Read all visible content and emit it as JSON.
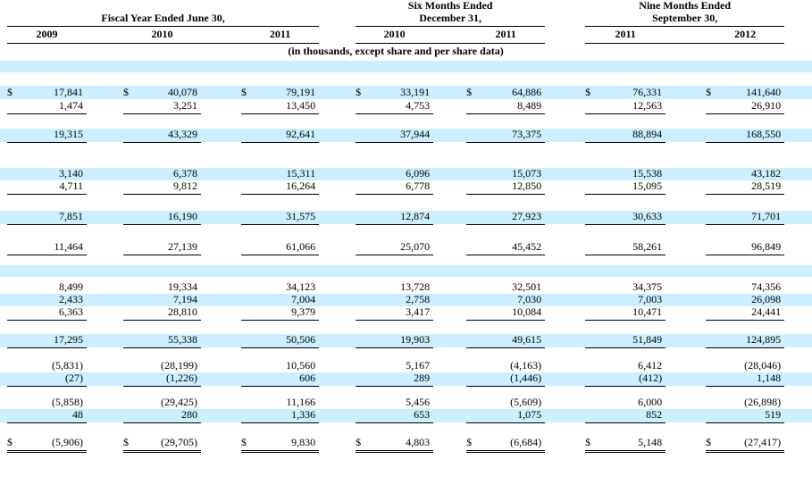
{
  "accent_color": "#cceeff",
  "currency_symbol": "$",
  "header": {
    "groups": [
      {
        "title": "Fiscal Year Ended June 30,",
        "years": [
          "2009",
          "2010",
          "2011"
        ]
      },
      {
        "title": "Six Months Ended\nDecember 31,",
        "years": [
          "2010",
          "2011"
        ]
      },
      {
        "title": "Nine Months Ended\nSeptember 30,",
        "years": [
          "2011",
          "2012"
        ]
      }
    ],
    "subtitle": "(in thousands, except share and per share data)"
  },
  "table": {
    "rows": [
      {
        "type": "blank",
        "bg": "blue",
        "h": 13
      },
      {
        "type": "blank",
        "bg": "white",
        "h": 15
      },
      {
        "type": "data",
        "bg": "blue",
        "h": 15,
        "dollar": true,
        "values": [
          "17,841",
          "40,078",
          "79,191",
          "33,191",
          "64,886",
          "76,331",
          "141,640"
        ]
      },
      {
        "type": "data",
        "bg": "white",
        "h": 16,
        "underline": true,
        "values": [
          "1,474",
          "3,251",
          "13,450",
          "4,753",
          "8,489",
          "12,563",
          "26,910"
        ]
      },
      {
        "type": "spacer",
        "bg": "white",
        "h": 17
      },
      {
        "type": "data",
        "bg": "blue",
        "h": 15,
        "underline": true,
        "values": [
          "19,315",
          "43,329",
          "92,641",
          "37,944",
          "73,375",
          "88,894",
          "168,550"
        ]
      },
      {
        "type": "spacer",
        "bg": "white",
        "h": 29
      },
      {
        "type": "data",
        "bg": "blue",
        "h": 14,
        "values": [
          "3,140",
          "6,378",
          "15,311",
          "6,096",
          "15,073",
          "15,538",
          "43,182"
        ]
      },
      {
        "type": "data",
        "bg": "white",
        "h": 15,
        "underline": true,
        "values": [
          "4,711",
          "9,812",
          "16,264",
          "6,778",
          "12,850",
          "15,095",
          "28,519"
        ]
      },
      {
        "type": "spacer",
        "bg": "white",
        "h": 19
      },
      {
        "type": "data",
        "bg": "blue",
        "h": 15,
        "underline": true,
        "values": [
          "7,851",
          "16,190",
          "31,575",
          "12,874",
          "27,923",
          "30,633",
          "71,701"
        ]
      },
      {
        "type": "spacer",
        "bg": "white",
        "h": 18
      },
      {
        "type": "data",
        "bg": "white",
        "h": 16,
        "underline": true,
        "values": [
          "11,464",
          "27,139",
          "61,066",
          "25,070",
          "45,452",
          "58,261",
          "96,849"
        ]
      },
      {
        "type": "spacer",
        "bg": "white",
        "h": 12
      },
      {
        "type": "blank",
        "bg": "blue",
        "h": 13
      },
      {
        "type": "spacer",
        "bg": "white",
        "h": 5
      },
      {
        "type": "data",
        "bg": "white",
        "h": 14,
        "values": [
          "8,499",
          "19,334",
          "34,123",
          "13,728",
          "32,501",
          "34,375",
          "74,356"
        ]
      },
      {
        "type": "data",
        "bg": "blue",
        "h": 14,
        "values": [
          "2,433",
          "7,194",
          "7,004",
          "2,758",
          "7,030",
          "7,003",
          "26,098"
        ]
      },
      {
        "type": "data",
        "bg": "white",
        "h": 15,
        "underline": true,
        "values": [
          "6,363",
          "28,810",
          "9,379",
          "3,417",
          "10,084",
          "10,471",
          "24,441"
        ]
      },
      {
        "type": "spacer",
        "bg": "white",
        "h": 16
      },
      {
        "type": "data",
        "bg": "blue",
        "h": 15,
        "underline": true,
        "values": [
          "17,295",
          "55,338",
          "50,506",
          "19,903",
          "49,615",
          "51,849",
          "124,895"
        ]
      },
      {
        "type": "spacer",
        "bg": "white",
        "h": 13
      },
      {
        "type": "data",
        "bg": "white",
        "h": 15,
        "values": [
          "(5,831)",
          "(28,199)",
          "10,560",
          "5,167",
          "(4,163)",
          "6,412",
          "(28,046)"
        ]
      },
      {
        "type": "data",
        "bg": "blue",
        "h": 15,
        "underline": true,
        "values": [
          "(27)",
          "(1,226)",
          "606",
          "289",
          "(1,446)",
          "(412)",
          "1,148"
        ]
      },
      {
        "type": "spacer",
        "bg": "white",
        "h": 11
      },
      {
        "type": "data",
        "bg": "white",
        "h": 15,
        "values": [
          "(5,858)",
          "(29,425)",
          "11,166",
          "5,456",
          "(5,609)",
          "6,000",
          "(26,898)"
        ]
      },
      {
        "type": "data",
        "bg": "blue",
        "h": 15,
        "underline": true,
        "values": [
          "48",
          "280",
          "1,336",
          "653",
          "1,075",
          "852",
          "519"
        ]
      },
      {
        "type": "spacer",
        "bg": "white",
        "h": 15
      },
      {
        "type": "data",
        "bg": "white",
        "h": 17,
        "dollar": true,
        "double_underline": true,
        "values": [
          "(5,906)",
          "(29,705)",
          "9,830",
          "4,803",
          "(6,684)",
          "5,148",
          "(27,417)"
        ]
      }
    ]
  }
}
